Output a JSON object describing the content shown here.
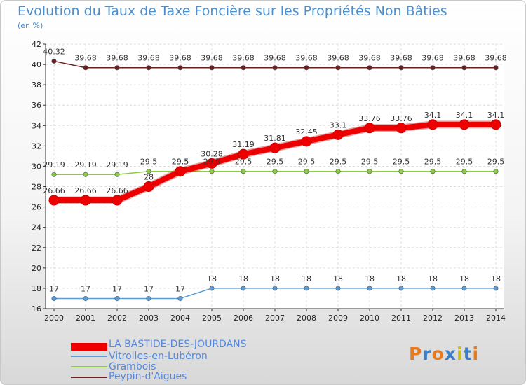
{
  "chart_data": {
    "type": "line",
    "title": "Evolution du Taux de Taxe Foncière sur les Propriétés Non Bâties",
    "ylabel": "(en %)",
    "xlabel": "",
    "ylim": [
      16,
      42
    ],
    "yticks": [
      16,
      18,
      20,
      22,
      24,
      26,
      28,
      30,
      32,
      34,
      36,
      38,
      40,
      42
    ],
    "x": [
      "2000",
      "2001",
      "2002",
      "2003",
      "2004",
      "2005",
      "2006",
      "2007",
      "2008",
      "2009",
      "2010",
      "2011",
      "2012",
      "2013",
      "2014"
    ],
    "series": [
      {
        "name": "LA BASTIDE-DES-JOURDANS",
        "color": "#ee0000",
        "values": [
          26.66,
          26.66,
          26.66,
          28,
          29.5,
          30.28,
          31.19,
          31.81,
          32.45,
          33.1,
          33.76,
          33.76,
          34.1,
          34.1,
          34.1
        ],
        "labels": [
          "26.66",
          "26.66",
          "26.66",
          "28",
          "29.5",
          "30.28",
          "31.19",
          "31.81",
          "32.45",
          "33.1",
          "33.76",
          "33.76",
          "34.1",
          "34.1",
          "34.1"
        ]
      },
      {
        "name": "Vitrolles-en-Lubéron",
        "color": "#5b9bd5",
        "values": [
          17,
          17,
          17,
          17,
          17,
          18,
          18,
          18,
          18,
          18,
          18,
          18,
          18,
          18,
          18
        ],
        "labels": [
          "17",
          "17",
          "17",
          "17",
          "17",
          "18",
          "18",
          "18",
          "18",
          "18",
          "18",
          "18",
          "18",
          "18",
          "18"
        ]
      },
      {
        "name": "Grambois",
        "color": "#8ccc44",
        "values": [
          29.19,
          29.19,
          29.19,
          29.5,
          29.5,
          29.5,
          29.5,
          29.5,
          29.5,
          29.5,
          29.5,
          29.5,
          29.5,
          29.5,
          29.5
        ],
        "labels": [
          "29.19",
          "29.19",
          "29.19",
          "29.5",
          "29.5",
          "29.5",
          "29.5",
          "29.5",
          "29.5",
          "29.5",
          "29.5",
          "29.5",
          "29.5",
          "29.5",
          "29.5"
        ]
      },
      {
        "name": "Peypin-d'Aigues",
        "color": "#6b2020",
        "values": [
          40.32,
          39.68,
          39.68,
          39.68,
          39.68,
          39.68,
          39.68,
          39.68,
          39.68,
          39.68,
          39.68,
          39.68,
          39.68,
          39.68,
          39.68
        ],
        "labels": [
          "40.32",
          "39.68",
          "39.68",
          "39.68",
          "39.68",
          "39.68",
          "39.68",
          "39.68",
          "39.68",
          "39.68",
          "39.68",
          "39.68",
          "39.68",
          "39.68",
          "39.68"
        ]
      }
    ]
  },
  "logo": {
    "letters": [
      "P",
      "r",
      "o",
      "x",
      "i",
      "t",
      "i"
    ],
    "colors": [
      "#e87a1e",
      "#3d7fc6",
      "#e87a1e",
      "#3d7fc6",
      "#c8c01a",
      "#3d7fc6",
      "#e87a1e"
    ]
  }
}
